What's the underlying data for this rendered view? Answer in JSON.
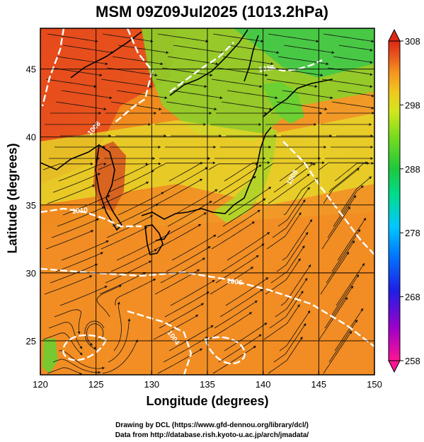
{
  "title": "MSM 09Z09Jul2025 (1013.2hPa)",
  "xlabel": "Longitude (degrees)",
  "ylabel": "Latitude  (degrees)",
  "credits": [
    "Drawing by DCL (https://www.gfd-dennou.org/library/dcl/)",
    "Data from http://database.rish.kyoto-u.ac.jp/arch/jmadata/"
  ],
  "map": {
    "lon_range": [
      120,
      150
    ],
    "lat_range": [
      22.5,
      48
    ],
    "lon_ticks": [
      "120",
      "125",
      "130",
      "135",
      "140",
      "145",
      "150"
    ],
    "lat_ticks": [
      "25",
      "30",
      "35",
      "40",
      "45"
    ],
    "gridlines": true
  },
  "colorbar": {
    "min": 258,
    "max": 308,
    "labels": [
      "308",
      "298",
      "288",
      "278",
      "268",
      "258"
    ],
    "colors": [
      "#ff1493",
      "#a000c8",
      "#1e1ee6",
      "#0078ff",
      "#00c8ff",
      "#00dc8c",
      "#1ec83c",
      "#78dc1e",
      "#d2e61e",
      "#f0c81e",
      "#f5961e",
      "#e6501e",
      "#dc2814"
    ]
  },
  "isobar_labels": [
    "1012",
    "1010",
    "1006",
    "1008",
    "1004",
    "1008"
  ],
  "legend_icon": "triangle-arrow-icon"
}
